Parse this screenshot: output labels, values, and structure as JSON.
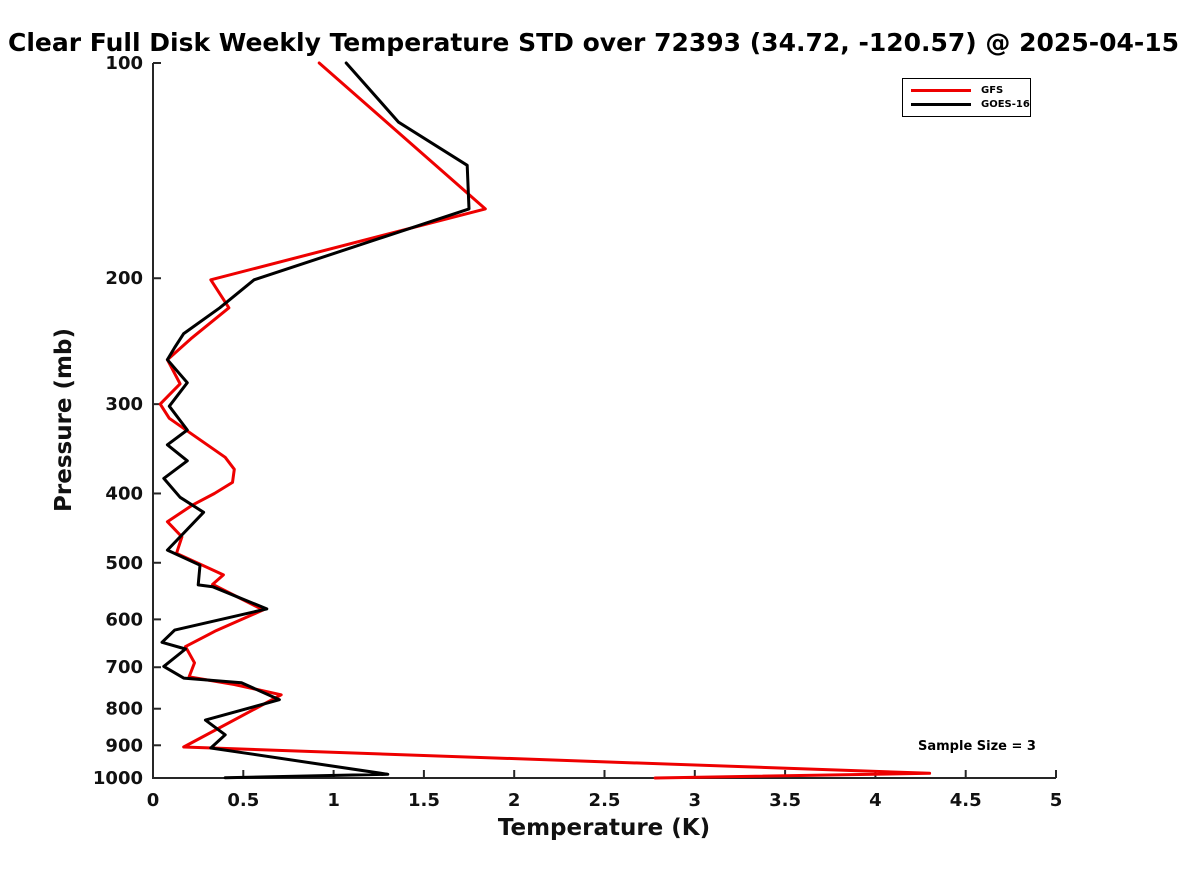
{
  "chart_data": {
    "type": "line",
    "title": "Clear Full Disk Weekly Temperature STD over 72393 (34.72, -120.57) @ 2025-04-15",
    "xlabel": "Temperature (K)",
    "ylabel": "Pressure (mb)",
    "annotation": "Sample Size = 3",
    "xlim": [
      0,
      5
    ],
    "ylim": [
      100,
      1000
    ],
    "yscale": "log",
    "y_inverted": true,
    "grid": false,
    "box": "off",
    "tick_direction": "in",
    "legend_position": "top-right",
    "axis_color": "#262626",
    "xticks": {
      "values": [
        0,
        0.5,
        1,
        1.5,
        2,
        2.5,
        3,
        3.5,
        4,
        4.5,
        5
      ],
      "labels": [
        "0",
        "0.5",
        "1",
        "1.5",
        "2",
        "2.5",
        "3",
        "3.5",
        "4",
        "4.5",
        "5"
      ]
    },
    "yticks": {
      "values": [
        100,
        200,
        300,
        400,
        500,
        600,
        700,
        800,
        900,
        1000
      ],
      "labels": [
        "100",
        "200",
        "300",
        "400",
        "500",
        "600",
        "700",
        "800",
        "900",
        "1000"
      ]
    },
    "series": [
      {
        "name": "GFS",
        "color": "#ee0000",
        "points": [
          [
            0.92,
            100
          ],
          [
            1.84,
            160
          ],
          [
            0.32,
            201
          ],
          [
            0.42,
            220
          ],
          [
            0.21,
            243
          ],
          [
            0.08,
            260
          ],
          [
            0.15,
            281
          ],
          [
            0.04,
            300
          ],
          [
            0.09,
            314
          ],
          [
            0.22,
            331
          ],
          [
            0.4,
            356
          ],
          [
            0.45,
            370
          ],
          [
            0.44,
            386
          ],
          [
            0.34,
            400
          ],
          [
            0.22,
            415
          ],
          [
            0.08,
            438
          ],
          [
            0.16,
            460
          ],
          [
            0.13,
            485
          ],
          [
            0.39,
            520
          ],
          [
            0.33,
            536
          ],
          [
            0.61,
            582
          ],
          [
            0.35,
            622
          ],
          [
            0.18,
            655
          ],
          [
            0.23,
            690
          ],
          [
            0.2,
            722
          ],
          [
            0.45,
            740
          ],
          [
            0.71,
            765
          ],
          [
            0.17,
            905
          ],
          [
            4.3,
            985
          ],
          [
            2.78,
            1000
          ]
        ]
      },
      {
        "name": "GOES-16",
        "color": "#000000",
        "points": [
          [
            1.07,
            100
          ],
          [
            1.36,
            121
          ],
          [
            1.74,
            139
          ],
          [
            1.75,
            160
          ],
          [
            0.56,
            201
          ],
          [
            0.37,
            220
          ],
          [
            0.17,
            239
          ],
          [
            0.12,
            250
          ],
          [
            0.08,
            260
          ],
          [
            0.19,
            280
          ],
          [
            0.09,
            302
          ],
          [
            0.19,
            326
          ],
          [
            0.08,
            342
          ],
          [
            0.19,
            360
          ],
          [
            0.06,
            381
          ],
          [
            0.15,
            405
          ],
          [
            0.28,
            425
          ],
          [
            0.08,
            480
          ],
          [
            0.26,
            504
          ],
          [
            0.25,
            537
          ],
          [
            0.33,
            540
          ],
          [
            0.63,
            580
          ],
          [
            0.12,
            621
          ],
          [
            0.05,
            646
          ],
          [
            0.18,
            660
          ],
          [
            0.06,
            698
          ],
          [
            0.17,
            725
          ],
          [
            0.49,
            736
          ],
          [
            0.7,
            777
          ],
          [
            0.29,
            830
          ],
          [
            0.4,
            870
          ],
          [
            0.32,
            908
          ],
          [
            0.5,
            922
          ],
          [
            1.3,
            988
          ],
          [
            0.4,
            999
          ]
        ]
      }
    ]
  }
}
